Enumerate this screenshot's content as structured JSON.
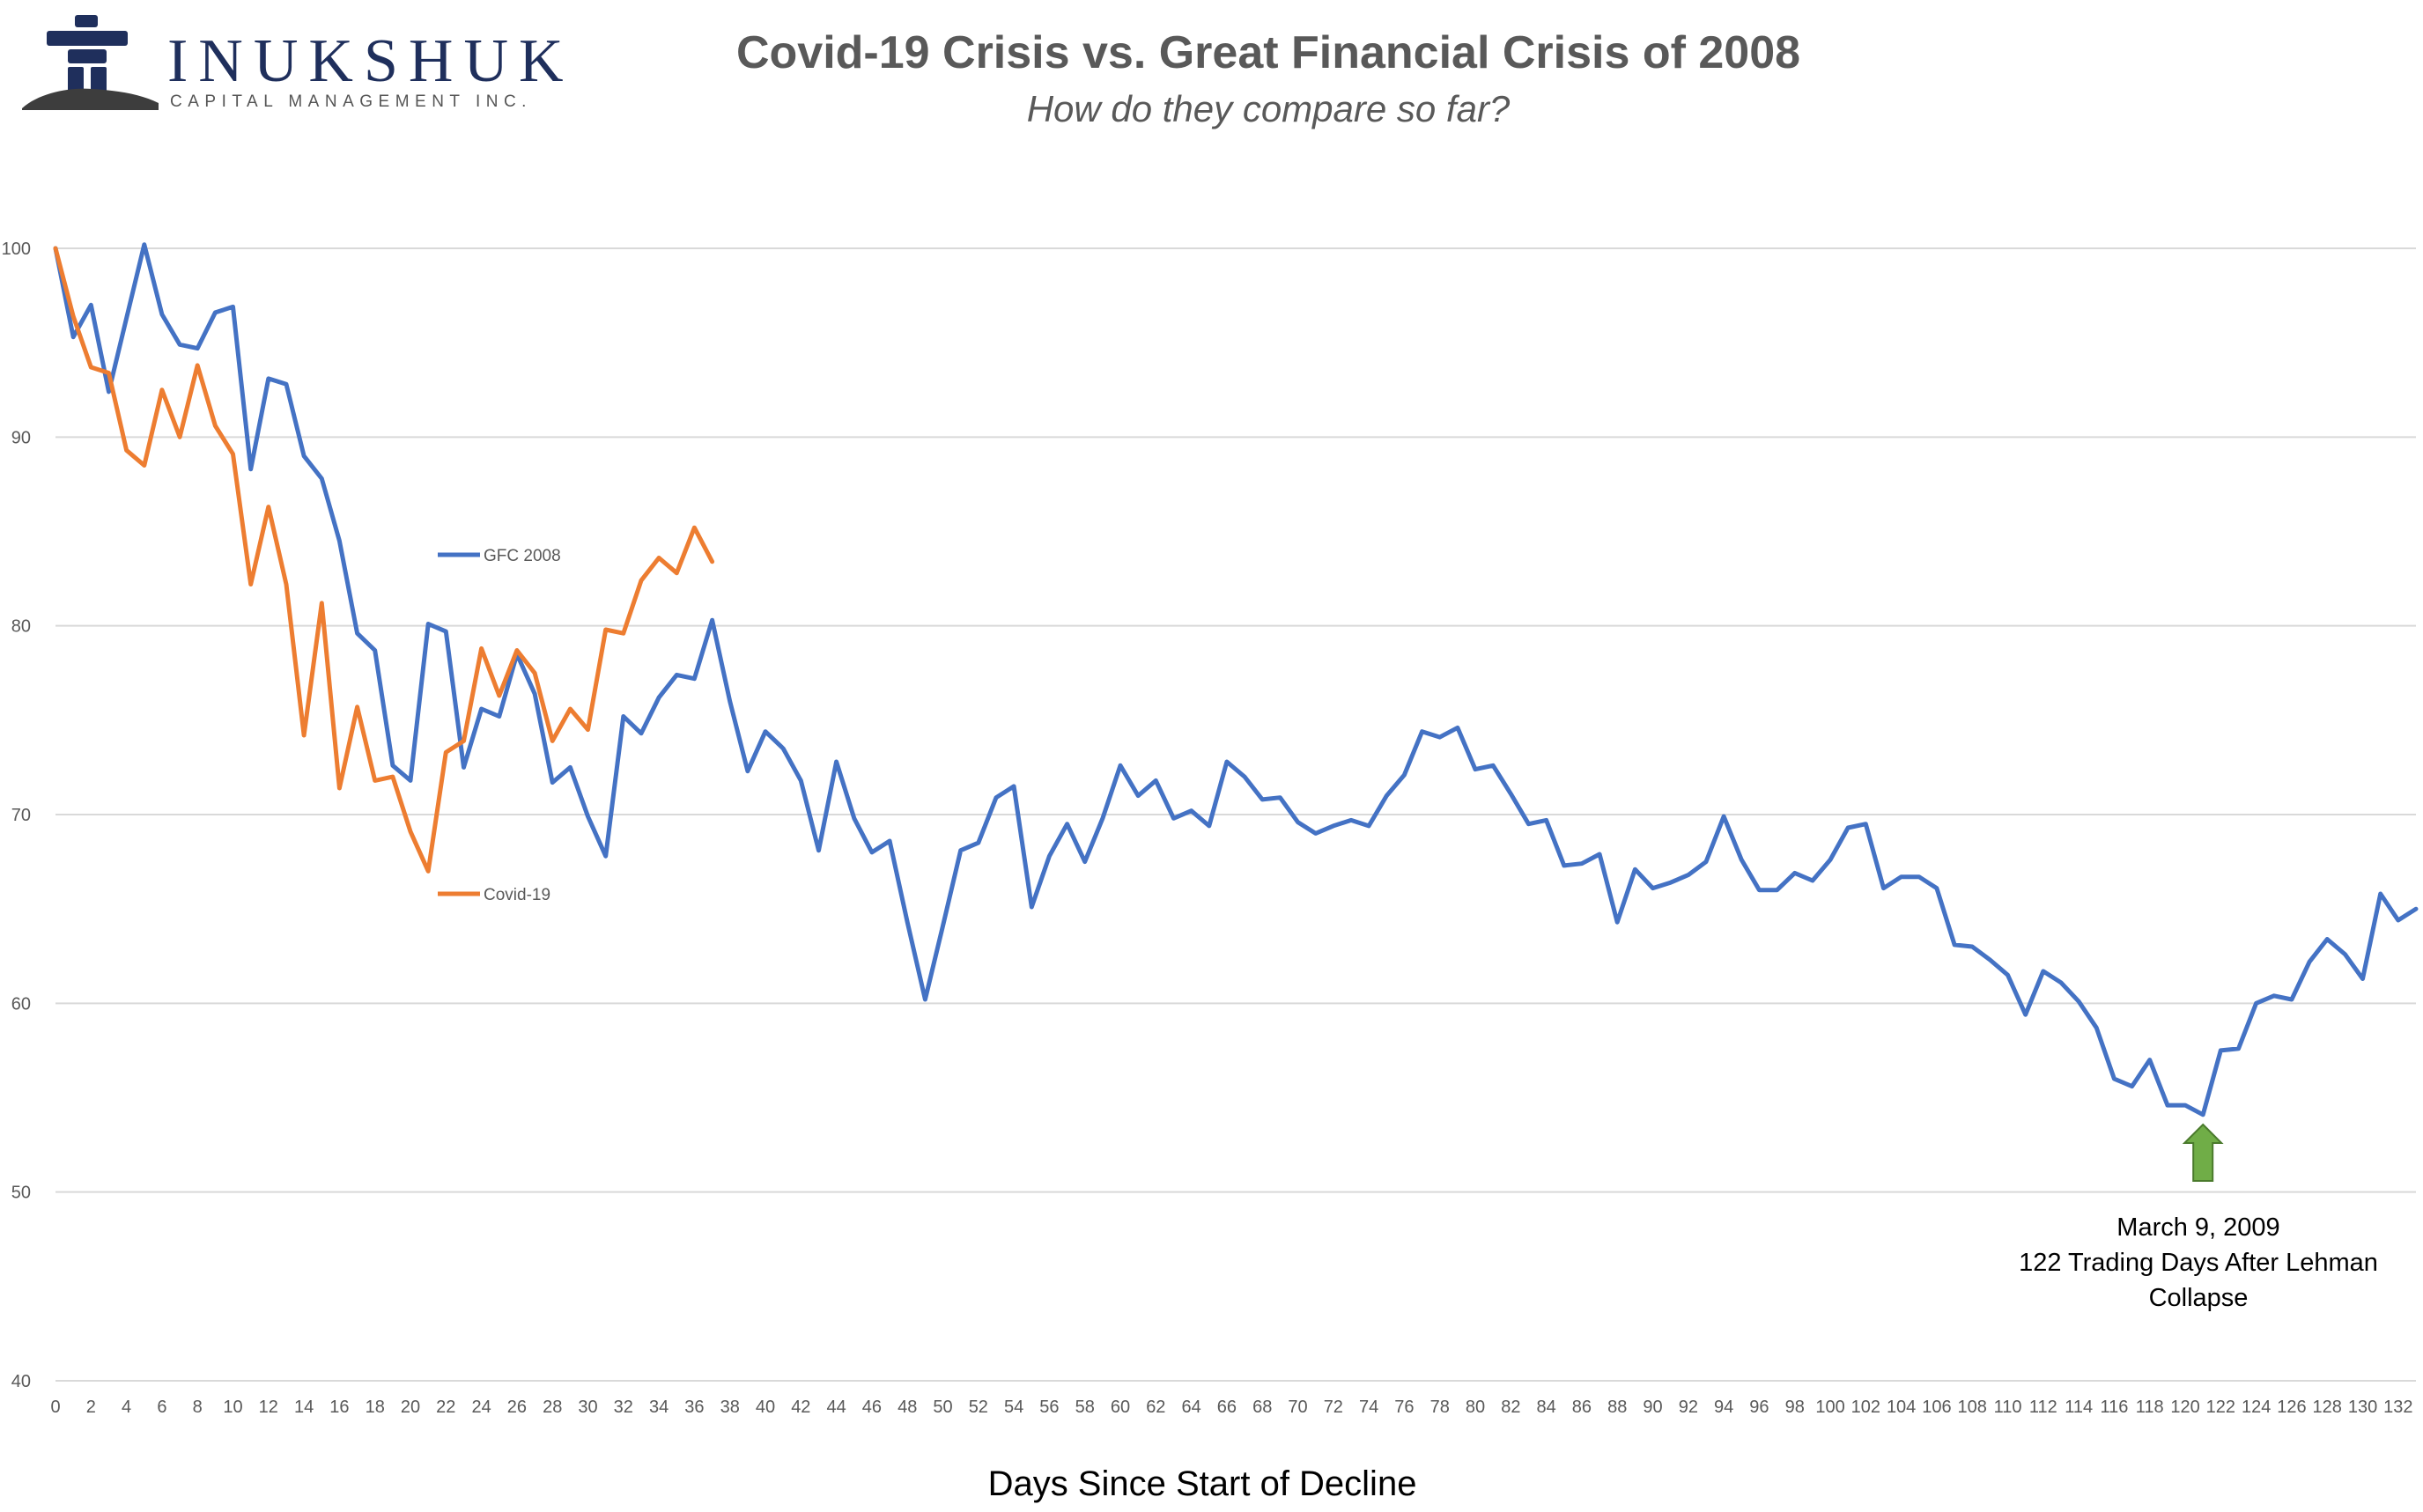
{
  "logo": {
    "name": "INUKSHUK",
    "subtitle": "CAPITAL MANAGEMENT INC.",
    "colors": {
      "primary": "#1f2f5c",
      "ground": "#3d3d3d"
    }
  },
  "chart_data": {
    "type": "line",
    "title": "Covid-19 Crisis vs. Great Financial Crisis of 2008",
    "subtitle": "How do they compare so far?",
    "xlabel": "Days Since Start of Decline",
    "ylabel": "",
    "xlim": [
      0,
      133
    ],
    "ylim": [
      40,
      100
    ],
    "yticks": [
      40,
      50,
      60,
      70,
      80,
      90,
      100
    ],
    "xtick_step": 2,
    "xtick_max": 132,
    "grid": true,
    "legend_placement": "inline-labels",
    "series": [
      {
        "name": "GFC 2008",
        "color": "#4472c4",
        "values": [
          100.0,
          95.3,
          97.0,
          92.4,
          96.3,
          100.2,
          96.5,
          94.9,
          94.7,
          96.6,
          96.9,
          88.3,
          93.1,
          92.8,
          89.0,
          87.8,
          84.5,
          79.6,
          78.7,
          72.6,
          71.8,
          80.1,
          79.7,
          72.5,
          75.6,
          75.2,
          78.5,
          76.4,
          71.7,
          72.5,
          69.9,
          67.8,
          75.2,
          74.3,
          76.2,
          77.4,
          77.2,
          80.3,
          76.0,
          72.3,
          74.4,
          73.5,
          71.8,
          68.1,
          72.8,
          69.8,
          68.0,
          68.6,
          64.3,
          60.2,
          64.1,
          68.1,
          68.5,
          70.9,
          71.5,
          65.1,
          67.8,
          69.5,
          67.5,
          69.8,
          72.6,
          71.0,
          71.8,
          69.8,
          70.2,
          69.4,
          72.8,
          72.0,
          70.8,
          70.9,
          69.6,
          69.0,
          69.4,
          69.7,
          69.4,
          71.0,
          72.1,
          74.4,
          74.1,
          74.6,
          72.4,
          72.6,
          71.1,
          69.5,
          69.7,
          67.3,
          67.4,
          67.9,
          64.3,
          67.1,
          66.1,
          66.4,
          66.8,
          67.5,
          69.9,
          67.6,
          66.0,
          66.0,
          66.9,
          66.5,
          67.6,
          69.3,
          69.5,
          66.1,
          66.7,
          66.7,
          66.1,
          63.1,
          63.0,
          62.3,
          61.5,
          59.4,
          61.7,
          61.1,
          60.1,
          58.7,
          56.0,
          55.6,
          57.0,
          54.6,
          54.6,
          54.1,
          57.5,
          57.6,
          60.0,
          60.4,
          60.2,
          62.2,
          63.4,
          62.6,
          61.3,
          65.8,
          64.4,
          65.0
        ]
      },
      {
        "name": "Covid-19",
        "color": "#ed7d31",
        "values": [
          100.0,
          96.4,
          93.7,
          93.4,
          89.3,
          88.5,
          92.5,
          90.0,
          93.8,
          90.6,
          89.1,
          82.2,
          86.3,
          82.2,
          74.2,
          81.2,
          71.4,
          75.7,
          71.8,
          72.0,
          69.1,
          67.0,
          73.3,
          73.9,
          78.8,
          76.3,
          78.7,
          77.5,
          73.9,
          75.6,
          74.5,
          79.8,
          79.6,
          82.4,
          83.6,
          82.8,
          85.2,
          83.4
        ]
      }
    ],
    "annotations": [
      {
        "type": "arrow-up",
        "x": 121,
        "color": "#70ad47",
        "text": [
          "March 9, 2009",
          "122 Trading Days After Lehman",
          "Collapse"
        ]
      }
    ]
  }
}
